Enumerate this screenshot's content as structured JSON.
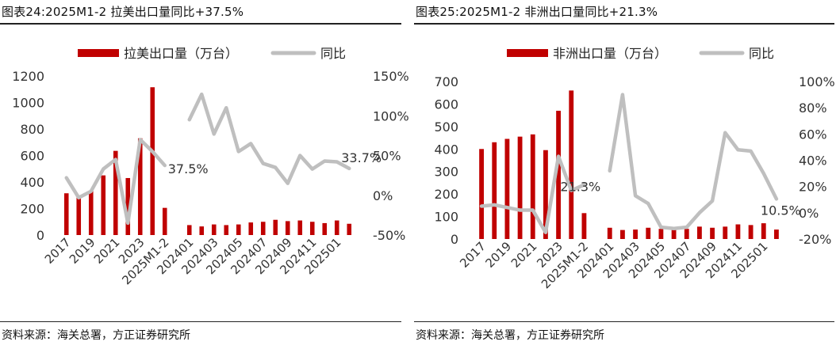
{
  "charts": [
    {
      "title": "图表24:2025M1-2 拉美出口量同比+37.5%",
      "source": "资料来源：海关总署，方正证券研究所",
      "colors": {
        "bar": "#c00000",
        "line": "#bfbfbf"
      },
      "chart_data": {
        "type": "bar+line",
        "legend_position": "top",
        "grid": false,
        "categories": [
          "2017",
          "2018",
          "2019",
          "2020",
          "2021",
          "2022",
          "2023",
          "2024",
          "2025M1-2",
          "",
          "202401",
          "202402",
          "202403",
          "202404",
          "202405",
          "202406",
          "202407",
          "202408",
          "202409",
          "202410",
          "202411",
          "202412",
          "202501",
          "202502"
        ],
        "x_tick_labels": [
          "2017",
          "2019",
          "2021",
          "2023",
          "2025M1-2",
          "202401",
          "202403",
          "202405",
          "202407",
          "202409",
          "202411",
          "202501"
        ],
        "series": [
          {
            "name": "拉美出口量（万台）",
            "type": "bar",
            "axis": "left",
            "values": [
              315,
              290,
              335,
              450,
              635,
              430,
              730,
              1115,
              205,
              null,
              75,
              65,
              80,
              75,
              80,
              95,
              100,
              115,
              105,
              110,
              100,
              90,
              110,
              85
            ]
          },
          {
            "name": "同比",
            "type": "line",
            "axis": "right",
            "values": [
              22,
              -3,
              5,
              33,
              45,
              -35,
              70,
              55,
              37.5,
              null,
              95,
              127,
              77,
              110,
              55,
              65,
              40,
              35,
              15,
              50,
              33,
              43,
              42,
              33.7
            ]
          }
        ],
        "left_axis": {
          "range": [
            0,
            1200
          ],
          "ticks": [
            "0",
            "200",
            "400",
            "600",
            "800",
            "1000",
            "1200"
          ]
        },
        "right_axis": {
          "range": [
            -50,
            150
          ],
          "ticks": [
            "-50%",
            "0%",
            "50%",
            "100%",
            "150%"
          ]
        },
        "annotations": [
          "37.5%",
          "33.7%"
        ]
      }
    },
    {
      "title": "图表25:2025M1-2 非洲出口量同比+21.3%",
      "source": "资料来源：海关总署，方正证券研究所",
      "colors": {
        "bar": "#c00000",
        "line": "#bfbfbf"
      },
      "chart_data": {
        "type": "bar+line",
        "legend_position": "top",
        "grid": false,
        "categories": [
          "2017",
          "2018",
          "2019",
          "2020",
          "2021",
          "2022",
          "2023",
          "2024",
          "2025M1-2",
          "",
          "202401",
          "202402",
          "202403",
          "202404",
          "202405",
          "202406",
          "202407",
          "202408",
          "202409",
          "202410",
          "202411",
          "202412",
          "202501",
          "202502"
        ],
        "x_tick_labels": [
          "2017",
          "2019",
          "2021",
          "2023",
          "2025M1-2",
          "202401",
          "202403",
          "202405",
          "202407",
          "202409",
          "202411",
          "202501"
        ],
        "series": [
          {
            "name": "非洲出口量（万台）",
            "type": "bar",
            "axis": "left",
            "values": [
              400,
              430,
              445,
              455,
              465,
              395,
              570,
              660,
              115,
              null,
              50,
              40,
              42,
              50,
              45,
              40,
              45,
              55,
              50,
              55,
              65,
              62,
              70,
              42
            ]
          },
          {
            "name": "同比",
            "type": "line",
            "axis": "right",
            "values": [
              5,
              6,
              4,
              2,
              2,
              -15,
              43,
              17,
              21.3,
              null,
              32,
              90,
              13,
              7,
              -11,
              -12,
              -11,
              0,
              9,
              61,
              48,
              47,
              30,
              10.5
            ]
          }
        ],
        "left_axis": {
          "range": [
            0,
            700
          ],
          "ticks": [
            "0",
            "100",
            "200",
            "300",
            "400",
            "500",
            "600",
            "700"
          ]
        },
        "right_axis": {
          "range": [
            -20,
            100
          ],
          "ticks": [
            "-20%",
            "0%",
            "20%",
            "40%",
            "60%",
            "80%",
            "100%"
          ]
        },
        "annotations": [
          "21.3%",
          "10.5%"
        ]
      }
    }
  ]
}
